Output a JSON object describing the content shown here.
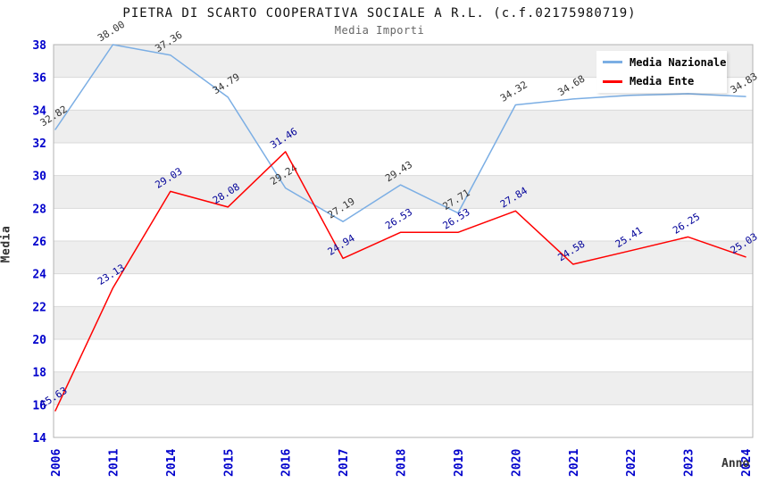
{
  "chart_data": {
    "type": "line",
    "title": "PIETRA DI SCARTO COOPERATIVA SOCIALE A R.L. (c.f.02175980719)",
    "subtitle": "Media Importi",
    "xlabel": "Anno",
    "ylabel": "Media",
    "x_categories": [
      "2006",
      "2011",
      "2014",
      "2015",
      "2016",
      "2017",
      "2018",
      "2019",
      "2020",
      "2021",
      "2022",
      "2023",
      "2024"
    ],
    "series": [
      {
        "name": "Media Nazionale",
        "color": "#7BAEE4",
        "label_color": "#333333",
        "values": [
          32.82,
          38.0,
          37.36,
          34.79,
          29.24,
          27.19,
          29.43,
          27.71,
          34.32,
          34.68,
          34.9,
          35.0,
          34.83
        ],
        "labels": [
          "32.82",
          "38.00",
          "37.36",
          "34.79",
          "29.24",
          "27.19",
          "29.43",
          "27.71",
          "34.32",
          "34.68",
          null,
          null,
          "34.83"
        ]
      },
      {
        "name": "Media Ente",
        "color": "#FF0000",
        "label_color": "#000099",
        "values": [
          15.63,
          23.13,
          29.03,
          28.08,
          31.46,
          24.94,
          26.53,
          26.53,
          27.84,
          24.58,
          25.41,
          26.25,
          25.03
        ],
        "labels": [
          "15.63",
          "23.13",
          "29.03",
          "28.08",
          "31.46",
          "24.94",
          "26.53",
          "26.53",
          "27.84",
          "24.58",
          "25.41",
          "26.25",
          "25.03"
        ]
      }
    ],
    "ylim": [
      14,
      38
    ],
    "y_ticks": [
      38,
      36,
      34,
      32,
      30,
      28,
      26,
      24,
      22,
      20,
      18,
      16,
      14
    ],
    "grid": "alternating horizontal bands, gridline every 2 units",
    "legend_position": "top-right"
  },
  "colors": {
    "tick_label_blue": "#0000CC",
    "band_gray": "#EEEEEE",
    "gridline": "#D9D9D9",
    "plot_border": "#B3B3B3",
    "title_text": "#111111",
    "subtitle_text": "#666666",
    "axis_title_text": "#333333"
  }
}
